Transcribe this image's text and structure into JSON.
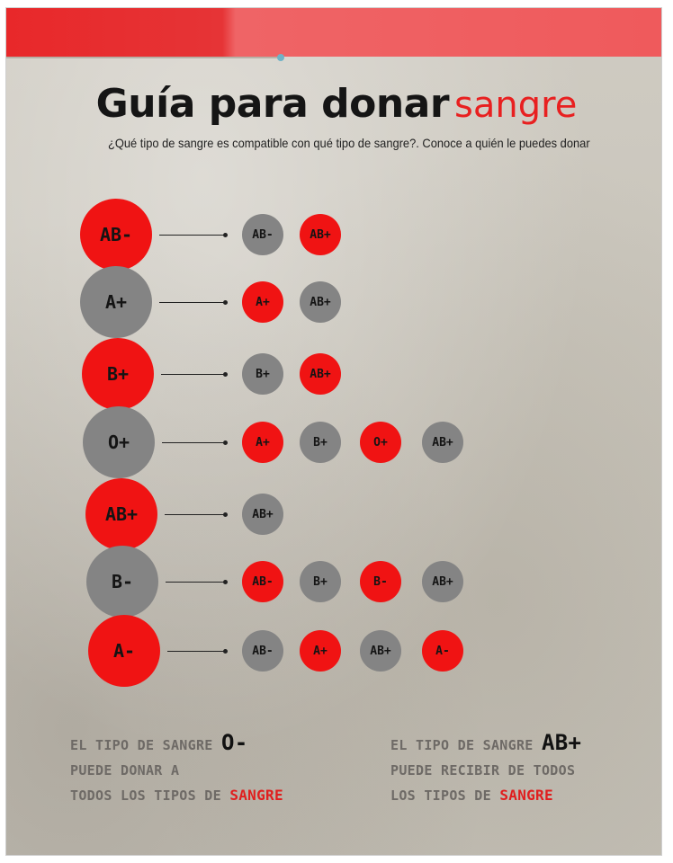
{
  "title": {
    "main": "Guía para donar",
    "accent": "sangre"
  },
  "subtitle": "¿Qué tipo de sangre es compatible con qué tipo de sangre?. Conoce a quién le puedes donar",
  "rows": [
    {
      "donor": "AB-",
      "donor_color": "red",
      "recipients": [
        {
          "label": "AB-",
          "color": "gray"
        },
        {
          "label": "AB+",
          "color": "red"
        }
      ]
    },
    {
      "donor": "A+",
      "donor_color": "gray",
      "recipients": [
        {
          "label": "A+",
          "color": "red"
        },
        {
          "label": "AB+",
          "color": "gray"
        }
      ]
    },
    {
      "donor": "B+",
      "donor_color": "red",
      "recipients": [
        {
          "label": "B+",
          "color": "gray"
        },
        {
          "label": "AB+",
          "color": "red"
        }
      ]
    },
    {
      "donor": "O+",
      "donor_color": "gray",
      "recipients": [
        {
          "label": "A+",
          "color": "red"
        },
        {
          "label": "B+",
          "color": "gray"
        },
        {
          "label": "O+",
          "color": "red"
        },
        {
          "label": "AB+",
          "color": "gray"
        }
      ]
    },
    {
      "donor": "AB+",
      "donor_color": "red",
      "recipients": [
        {
          "label": "AB+",
          "color": "gray"
        }
      ]
    },
    {
      "donor": "B-",
      "donor_color": "gray",
      "recipients": [
        {
          "label": "AB-",
          "color": "red"
        },
        {
          "label": "B+",
          "color": "gray"
        },
        {
          "label": "B-",
          "color": "red"
        },
        {
          "label": "AB+",
          "color": "gray"
        }
      ]
    },
    {
      "donor": "A-",
      "donor_color": "red",
      "recipients": [
        {
          "label": "AB-",
          "color": "gray"
        },
        {
          "label": "A+",
          "color": "red"
        },
        {
          "label": "AB+",
          "color": "gray"
        },
        {
          "label": "A-",
          "color": "red"
        }
      ]
    }
  ],
  "notes": {
    "left": {
      "line1": "EL TIPO DE SANGRE",
      "type": "O-",
      "line2": "PUEDE DONAR A",
      "line3": "TODOS LOS TIPOS DE",
      "accent": "SANGRE"
    },
    "right": {
      "line1": "EL TIPO DE SANGRE",
      "type": "AB+",
      "line2": "PUEDE RECIBIR DE TODOS",
      "line3": "LOS TIPOS DE",
      "accent": "SANGRE"
    }
  },
  "colors": {
    "red": "#f01313",
    "gray": "#848484",
    "title_accent": "#e82020"
  }
}
